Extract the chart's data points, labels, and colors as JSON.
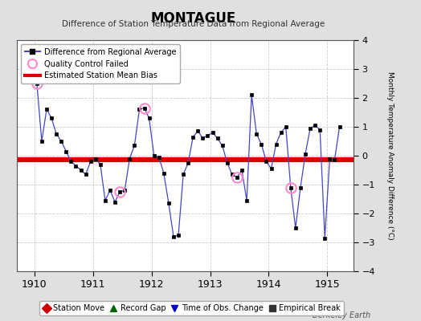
{
  "title": "MONTAGUE",
  "subtitle": "Difference of Station Temperature Data from Regional Average",
  "ylabel_right": "Monthly Temperature Anomaly Difference (°C)",
  "credit": "Berkeley Earth",
  "xlim": [
    1909.7,
    1915.45
  ],
  "ylim": [
    -4,
    4
  ],
  "yticks": [
    -4,
    -3,
    -2,
    -1,
    0,
    1,
    2,
    3,
    4
  ],
  "xticks": [
    1910,
    1911,
    1912,
    1913,
    1914,
    1915
  ],
  "bias_line_y": -0.15,
  "line_color": "#4444cc",
  "marker_color": "#000000",
  "qc_failed_color": "#ff88cc",
  "bias_color": "#dd0000",
  "background_color": "#e0e0e0",
  "plot_bg_color": "#ffffff",
  "data_x": [
    1910.042,
    1910.125,
    1910.208,
    1910.292,
    1910.375,
    1910.458,
    1910.542,
    1910.625,
    1910.708,
    1910.792,
    1910.875,
    1910.958,
    1911.042,
    1911.125,
    1911.208,
    1911.292,
    1911.375,
    1911.458,
    1911.542,
    1911.625,
    1911.708,
    1911.792,
    1911.875,
    1911.958,
    1912.042,
    1912.125,
    1912.208,
    1912.292,
    1912.375,
    1912.458,
    1912.542,
    1912.625,
    1912.708,
    1912.792,
    1912.875,
    1912.958,
    1913.042,
    1913.125,
    1913.208,
    1913.292,
    1913.375,
    1913.458,
    1913.542,
    1913.625,
    1913.708,
    1913.792,
    1913.875,
    1913.958,
    1914.042,
    1914.125,
    1914.208,
    1914.292,
    1914.375,
    1914.458,
    1914.542,
    1914.625,
    1914.708,
    1914.792,
    1914.875,
    1914.958,
    1915.042,
    1915.125,
    1915.208
  ],
  "data_y": [
    2.5,
    0.5,
    1.6,
    1.3,
    0.75,
    0.5,
    0.15,
    -0.2,
    -0.35,
    -0.5,
    -0.65,
    -0.2,
    -0.1,
    -0.3,
    -1.55,
    -1.2,
    -1.6,
    -1.25,
    -1.2,
    -0.1,
    0.35,
    1.6,
    1.65,
    1.3,
    0.0,
    -0.05,
    -0.6,
    -1.65,
    -2.8,
    -2.75,
    -0.65,
    -0.25,
    0.65,
    0.85,
    0.6,
    0.7,
    0.8,
    0.6,
    0.35,
    -0.25,
    -0.65,
    -0.75,
    -0.5,
    -1.55,
    2.1,
    0.75,
    0.4,
    -0.2,
    -0.45,
    0.4,
    0.8,
    1.0,
    -1.1,
    -2.5,
    -1.1,
    0.05,
    0.95,
    1.05,
    0.9,
    -2.85,
    -0.1,
    -0.15,
    1.0
  ],
  "qc_failed_x": [
    1910.042,
    1911.458,
    1911.875,
    1913.458,
    1914.375
  ],
  "qc_failed_y": [
    2.5,
    -1.25,
    1.65,
    -0.75,
    -1.1
  ],
  "legend_entries": [
    "Difference from Regional Average",
    "Quality Control Failed",
    "Estimated Station Mean Bias"
  ],
  "bottom_legend": [
    {
      "label": "Station Move",
      "marker": "D",
      "color": "#cc0000"
    },
    {
      "label": "Record Gap",
      "marker": "^",
      "color": "#006600"
    },
    {
      "label": "Time of Obs. Change",
      "marker": "v",
      "color": "#0000cc"
    },
    {
      "label": "Empirical Break",
      "marker": "s",
      "color": "#333333"
    }
  ]
}
